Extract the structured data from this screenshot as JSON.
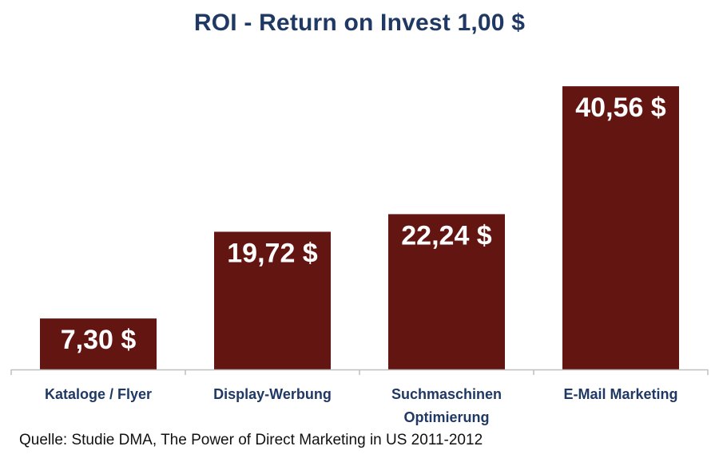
{
  "title": "ROI - Return on Invest 1,00 $",
  "source": "Quelle: Studie DMA, The Power of Direct Marketing in US 2011-2012",
  "colors": {
    "bar": "#631511",
    "title": "#1f3864",
    "category": "#1f3864",
    "axis": "#bfbfbf"
  },
  "chart_data": {
    "type": "bar",
    "title": "ROI - Return on Invest 1,00 $",
    "categories": [
      "Kataloge / Flyer",
      "Display-Werbung",
      "Suchmaschinen Optimierung",
      "E-Mail Marketing"
    ],
    "category_lines": [
      [
        "Kataloge / Flyer"
      ],
      [
        "Display-Werbung"
      ],
      [
        "Suchmaschinen",
        "Optimierung"
      ],
      [
        "E-Mail Marketing"
      ]
    ],
    "values": [
      7.3,
      19.72,
      22.24,
      40.56
    ],
    "data_labels": [
      "7,30 $",
      "19,72 $",
      "22,24 $",
      "40,56 $"
    ],
    "xlabel": "",
    "ylabel": "",
    "ylim": [
      0,
      45
    ],
    "grid": false,
    "legend": "none"
  }
}
